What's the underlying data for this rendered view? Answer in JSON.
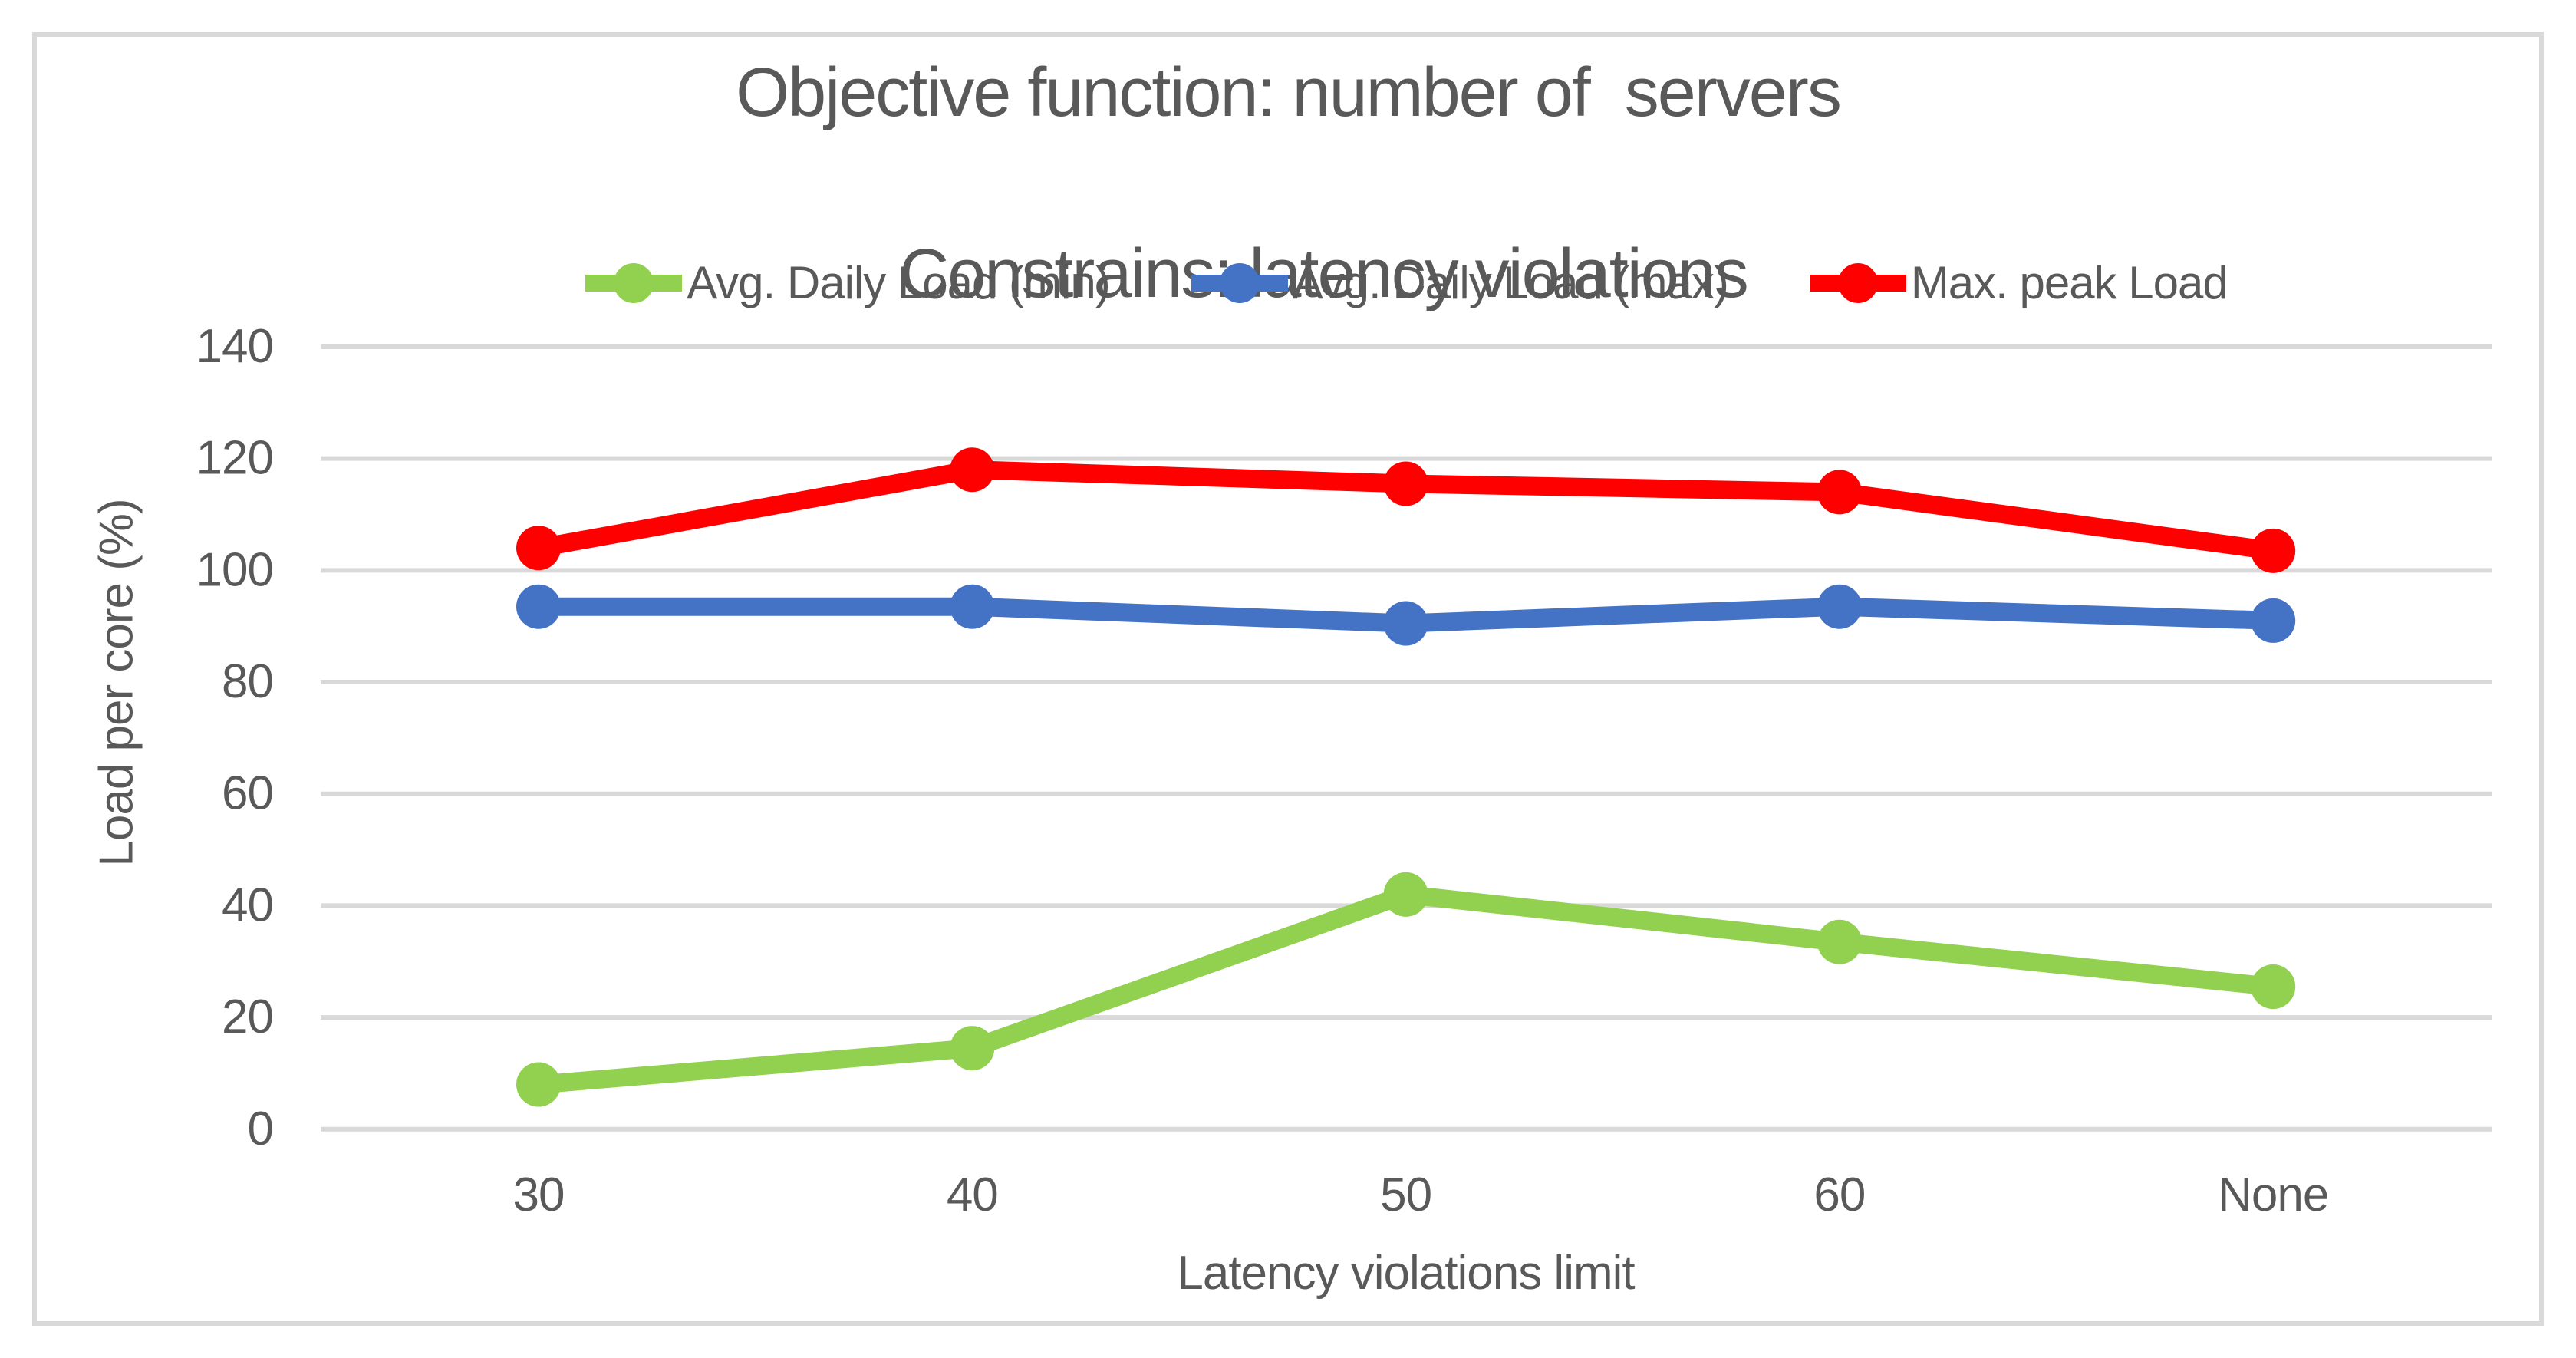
{
  "chart_data": {
    "type": "line",
    "title_line1": "Objective function: number of  servers",
    "title_line2": "Constrains: latency violations",
    "categories": [
      "30",
      "40",
      "50",
      "60",
      "None"
    ],
    "series": [
      {
        "name": "Avg. Daily Load (min)",
        "color": "#92D050",
        "values": [
          8,
          14.5,
          42,
          33.5,
          25.5
        ]
      },
      {
        "name": "Avg. Daily Load (max)",
        "color": "#4472C4",
        "values": [
          93.5,
          93.5,
          90.5,
          93.5,
          91
        ]
      },
      {
        "name": "Max. peak Load",
        "color": "#FF0000",
        "values": [
          104,
          118,
          115.5,
          114,
          103.5
        ]
      }
    ],
    "xlabel": "Latency violations limit",
    "ylabel": "Load per core (%)",
    "ylim": [
      0,
      140
    ],
    "ytick_step": 20,
    "yticks": [
      "0",
      "20",
      "40",
      "60",
      "80",
      "100",
      "120",
      "140"
    ],
    "grid": true,
    "legend_position": "top",
    "colors": {
      "text": "#595959",
      "gridline": "#D9D9D9",
      "frame_border": "#D9D9D9",
      "background": "#FFFFFF"
    }
  }
}
